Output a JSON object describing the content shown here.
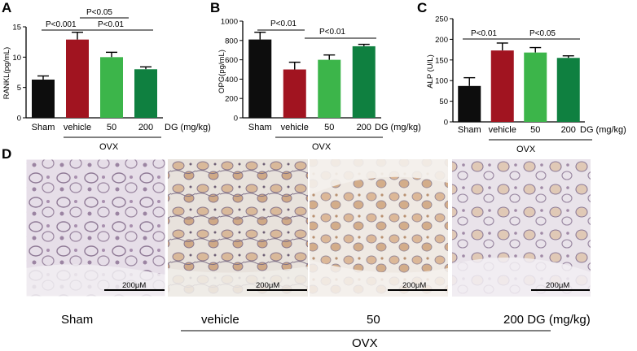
{
  "panel_labels": {
    "a": "A",
    "b": "B",
    "c": "C",
    "d": "D"
  },
  "colors": {
    "sham": "#0d0d0d",
    "vehicle": "#a11420",
    "dg50": "#3cb54a",
    "dg200": "#0f8040",
    "error": "#000000"
  },
  "chart_data": [
    {
      "type": "bar",
      "categories": [
        "Sham",
        "vehicle",
        "50",
        "200"
      ],
      "values": [
        6.3,
        12.9,
        10.0,
        8.0
      ],
      "errors": [
        0.6,
        1.2,
        0.8,
        0.4
      ],
      "ylabel": "RANKL(pg/mL)",
      "ylim": [
        0,
        15
      ],
      "yticks": [
        "0",
        "5",
        "10",
        "15"
      ],
      "tick_values": [
        0,
        5,
        10,
        15
      ],
      "unit_label": "DG (mg/kg)",
      "group_label": "OVX",
      "annotations": [
        "P<0.001",
        "P<0.05",
        "P<0.01"
      ]
    },
    {
      "type": "bar",
      "categories": [
        "Sham",
        "vehicle",
        "50",
        "200"
      ],
      "values": [
        810,
        500,
        600,
        740
      ],
      "errors": [
        75,
        75,
        50,
        20
      ],
      "ylabel": "OPG(pg/mL)",
      "ylim": [
        0,
        1000
      ],
      "yticks": [
        "0",
        "200",
        "400",
        "600",
        "800",
        "1000"
      ],
      "tick_values": [
        0,
        200,
        400,
        600,
        800,
        1000
      ],
      "unit_label": "DG (mg/kg)",
      "group_label": "OVX",
      "annotations": [
        "P<0.01",
        "P<0.01"
      ]
    },
    {
      "type": "bar",
      "categories": [
        "Sham",
        "vehicle",
        "50",
        "200"
      ],
      "values": [
        87,
        173,
        168,
        155
      ],
      "errors": [
        20,
        18,
        12,
        5
      ],
      "ylabel": "ALP (U/L)",
      "ylim": [
        0,
        250
      ],
      "yticks": [
        "0",
        "50",
        "100",
        "150",
        "200",
        "250"
      ],
      "tick_values": [
        0,
        50,
        100,
        150,
        200,
        250
      ],
      "unit_label": "DG  (mg/kg)",
      "group_label": "OVX",
      "annotations": [
        "P<0.01",
        "P<0.05"
      ]
    }
  ],
  "panel_d": {
    "scale_label": "200μM",
    "labels": [
      "Sham",
      "vehicle",
      "50",
      "200 DG (mg/kg)"
    ],
    "group_label": "OVX"
  }
}
